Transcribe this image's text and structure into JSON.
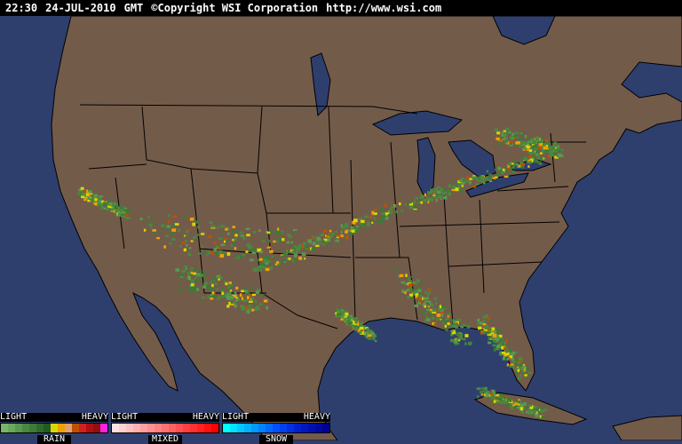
{
  "header": {
    "time": "22:30",
    "date": "24-JUL-2010",
    "timezone": "GMT",
    "copyright": "©Copyright WSI Corporation",
    "url": "http://www.wsi.com"
  },
  "colors": {
    "land": "#735b4a",
    "water": "#2e3f6e",
    "borders": "#000000"
  },
  "legend": [
    {
      "name": "RAIN",
      "light": "LIGHT",
      "heavy": "HEAVY",
      "colors": [
        "#78b46a",
        "#6aa85c",
        "#5a9850",
        "#4a8840",
        "#3c7a36",
        "#2e6a2a",
        "#225a20",
        "#d8d800",
        "#f0a000",
        "#e0a070",
        "#c05000",
        "#d02020",
        "#b01010",
        "#901010",
        "#ff20e0"
      ]
    },
    {
      "name": "MIXED",
      "light": "LIGHT",
      "heavy": "HEAVY",
      "colors": [
        "#ffe0e0",
        "#ffd0d0",
        "#ffc0c0",
        "#ffb0b0",
        "#ffa0a0",
        "#ff9090",
        "#ff8080",
        "#ff7070",
        "#ff6060",
        "#ff5050",
        "#ff4040",
        "#ff3030",
        "#ff2020",
        "#ff1010",
        "#ff0000"
      ]
    },
    {
      "name": "SNOW",
      "light": "LIGHT",
      "heavy": "HEAVY",
      "colors": [
        "#00ffff",
        "#00e0ff",
        "#00c8ff",
        "#00b0ff",
        "#0098ff",
        "#0080ff",
        "#0068ff",
        "#0050ff",
        "#0040f0",
        "#0030e0",
        "#0020d0",
        "#0018c0",
        "#0010b0",
        "#0008a0",
        "#000090"
      ]
    }
  ]
}
